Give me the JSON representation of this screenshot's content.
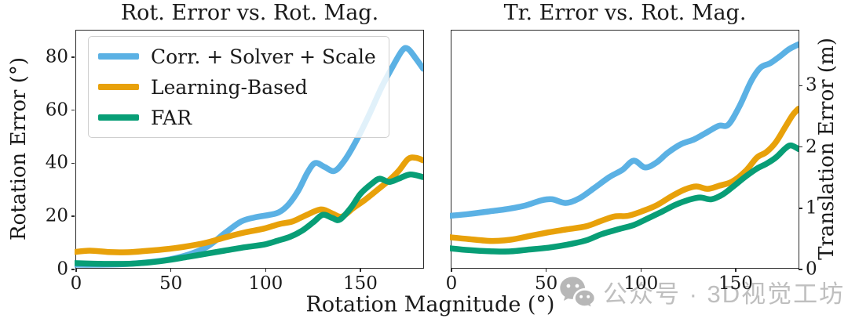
{
  "shared_xlabel": "Rotation Magnitude (°)",
  "watermark": {
    "icon": "wechat-icon",
    "text": "公众号 · 3D视觉工坊",
    "color": "#bfbfbf"
  },
  "palette": {
    "sky_blue": "#5bb1e4",
    "orange": "#e8a10a",
    "green": "#089e76",
    "spine": "#2a2a2a",
    "legend_border": "#cfcfcf"
  },
  "chart_data": [
    {
      "type": "line",
      "title": "Rot. Error vs. Rot. Mag.",
      "ylabel": "Rotation Error (°)",
      "ylabel_side": "left",
      "xlim": [
        0,
        184
      ],
      "ylim": [
        0,
        90
      ],
      "xticks": [
        0,
        50,
        100,
        150
      ],
      "yticks": [
        0,
        20,
        40,
        60,
        80
      ],
      "ytick_side": "left",
      "grid": false,
      "legend_position": "upper-left",
      "series": [
        {
          "name": "Corr. + Solver + Scale",
          "color": "#5bb1e4",
          "points": [
            [
              0,
              1.2
            ],
            [
              10,
              1.2
            ],
            [
              20,
              1.3
            ],
            [
              30,
              1.6
            ],
            [
              40,
              2.2
            ],
            [
              50,
              3.2
            ],
            [
              60,
              5
            ],
            [
              70,
              8
            ],
            [
              80,
              13.5
            ],
            [
              88,
              17.5
            ],
            [
              95,
              19
            ],
            [
              103,
              20
            ],
            [
              108,
              21
            ],
            [
              113,
              24
            ],
            [
              118,
              29
            ],
            [
              123,
              36
            ],
            [
              127,
              39.5
            ],
            [
              132,
              38
            ],
            [
              137,
              36.5
            ],
            [
              142,
              40
            ],
            [
              148,
              47
            ],
            [
              155,
              57
            ],
            [
              162,
              68
            ],
            [
              168,
              76
            ],
            [
              173,
              82
            ],
            [
              176,
              82.5
            ],
            [
              180,
              79
            ],
            [
              184,
              75
            ]
          ]
        },
        {
          "name": "Learning-Based",
          "color": "#e8a10a",
          "points": [
            [
              0,
              6
            ],
            [
              8,
              6.5
            ],
            [
              18,
              6
            ],
            [
              28,
              5.9
            ],
            [
              38,
              6.4
            ],
            [
              50,
              7.2
            ],
            [
              60,
              8.2
            ],
            [
              70,
              9.6
            ],
            [
              80,
              11.6
            ],
            [
              90,
              13.4
            ],
            [
              100,
              14.8
            ],
            [
              108,
              16.5
            ],
            [
              115,
              17.5
            ],
            [
              122,
              19.8
            ],
            [
              130,
              22
            ],
            [
              136,
              20.5
            ],
            [
              141,
              19.3
            ],
            [
              147,
              22.5
            ],
            [
              153,
              25.5
            ],
            [
              160,
              29.5
            ],
            [
              166,
              33
            ],
            [
              171,
              36.5
            ],
            [
              176,
              41
            ],
            [
              180,
              41.5
            ],
            [
              184,
              40.5
            ]
          ]
        },
        {
          "name": "FAR",
          "color": "#089e76",
          "points": [
            [
              0,
              1.8
            ],
            [
              10,
              1.6
            ],
            [
              20,
              1.5
            ],
            [
              30,
              1.6
            ],
            [
              40,
              2.1
            ],
            [
              50,
              3
            ],
            [
              60,
              4.2
            ],
            [
              70,
              5.4
            ],
            [
              80,
              6.6
            ],
            [
              90,
              7.8
            ],
            [
              100,
              8.8
            ],
            [
              107,
              10.2
            ],
            [
              114,
              11.8
            ],
            [
              120,
              14
            ],
            [
              126,
              17.2
            ],
            [
              131,
              20
            ],
            [
              136,
              18.8
            ],
            [
              140,
              18.2
            ],
            [
              146,
              22.8
            ],
            [
              151,
              28
            ],
            [
              157,
              31.8
            ],
            [
              161,
              33.6
            ],
            [
              166,
              32.4
            ],
            [
              171,
              33.6
            ],
            [
              177,
              35.2
            ],
            [
              184,
              34.2
            ]
          ]
        }
      ]
    },
    {
      "type": "line",
      "title": "Tr. Error vs. Rot. Mag.",
      "ylabel": "Translation Error (m)",
      "ylabel_side": "right",
      "xlim": [
        0,
        184
      ],
      "ylim": [
        0,
        3.9
      ],
      "xticks": [
        0,
        50,
        100,
        150
      ],
      "yticks": [
        0,
        1,
        2,
        3
      ],
      "ytick_side": "right",
      "grid": false,
      "legend_position": "none",
      "series": [
        {
          "name": "Corr. + Solver + Scale",
          "color": "#5bb1e4",
          "points": [
            [
              0,
              0.85
            ],
            [
              10,
              0.88
            ],
            [
              20,
              0.92
            ],
            [
              30,
              0.96
            ],
            [
              40,
              1.02
            ],
            [
              48,
              1.1
            ],
            [
              54,
              1.12
            ],
            [
              61,
              1.06
            ],
            [
              68,
              1.13
            ],
            [
              76,
              1.3
            ],
            [
              84,
              1.48
            ],
            [
              91,
              1.6
            ],
            [
              97,
              1.75
            ],
            [
              103,
              1.64
            ],
            [
              109,
              1.72
            ],
            [
              115,
              1.88
            ],
            [
              122,
              2.02
            ],
            [
              129,
              2.1
            ],
            [
              136,
              2.22
            ],
            [
              142,
              2.32
            ],
            [
              147,
              2.34
            ],
            [
              153,
              2.65
            ],
            [
              159,
              3.05
            ],
            [
              164,
              3.27
            ],
            [
              169,
              3.34
            ],
            [
              174,
              3.45
            ],
            [
              179,
              3.57
            ],
            [
              184,
              3.65
            ]
          ]
        },
        {
          "name": "Learning-Based",
          "color": "#e8a10a",
          "points": [
            [
              0,
              0.5
            ],
            [
              10,
              0.47
            ],
            [
              22,
              0.44
            ],
            [
              32,
              0.46
            ],
            [
              42,
              0.52
            ],
            [
              52,
              0.58
            ],
            [
              62,
              0.63
            ],
            [
              72,
              0.68
            ],
            [
              80,
              0.77
            ],
            [
              87,
              0.84
            ],
            [
              94,
              0.85
            ],
            [
              101,
              0.92
            ],
            [
              109,
              1.02
            ],
            [
              117,
              1.17
            ],
            [
              124,
              1.28
            ],
            [
              130,
              1.33
            ],
            [
              136,
              1.29
            ],
            [
              142,
              1.34
            ],
            [
              149,
              1.41
            ],
            [
              156,
              1.58
            ],
            [
              162,
              1.8
            ],
            [
              167,
              1.89
            ],
            [
              172,
              2.05
            ],
            [
              177,
              2.3
            ],
            [
              181,
              2.5
            ],
            [
              184,
              2.6
            ]
          ]
        },
        {
          "name": "FAR",
          "color": "#089e76",
          "points": [
            [
              0,
              0.32
            ],
            [
              10,
              0.29
            ],
            [
              22,
              0.27
            ],
            [
              32,
              0.27
            ],
            [
              42,
              0.3
            ],
            [
              52,
              0.33
            ],
            [
              62,
              0.38
            ],
            [
              72,
              0.45
            ],
            [
              80,
              0.55
            ],
            [
              90,
              0.64
            ],
            [
              97,
              0.7
            ],
            [
              104,
              0.8
            ],
            [
              112,
              0.92
            ],
            [
              119,
              1.03
            ],
            [
              126,
              1.11
            ],
            [
              132,
              1.15
            ],
            [
              138,
              1.12
            ],
            [
              144,
              1.2
            ],
            [
              150,
              1.34
            ],
            [
              156,
              1.49
            ],
            [
              162,
              1.62
            ],
            [
              167,
              1.7
            ],
            [
              172,
              1.8
            ],
            [
              177,
              1.95
            ],
            [
              180,
              2.0
            ],
            [
              184,
              1.94
            ]
          ]
        }
      ]
    }
  ]
}
